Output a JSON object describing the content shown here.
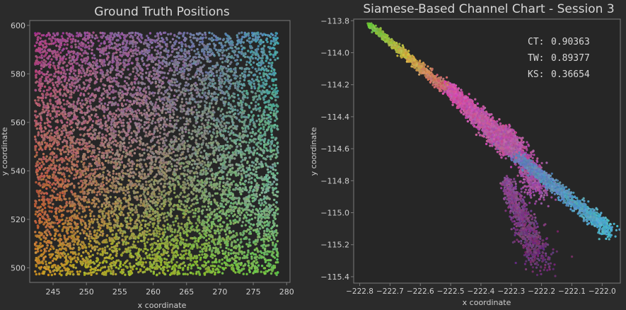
{
  "theme": {
    "figure_bg": "#2b2b2b",
    "axes_bg": "#262626",
    "spine": "#7a7a7a",
    "text": "#cfcfcf",
    "title": "#d6d6d6"
  },
  "chart_data": [
    {
      "type": "scatter",
      "title": "Ground Truth Positions",
      "xlabel": "x coordinate",
      "ylabel": "y coordinate",
      "xlim": [
        241.5,
        280.5
      ],
      "ylim": [
        494,
        602
      ],
      "xticks": [
        245,
        250,
        255,
        260,
        265,
        270,
        275,
        280
      ],
      "yticks": [
        500,
        520,
        540,
        560,
        580,
        600
      ],
      "grid": false,
      "coloring": "color encodes true position: magenta top-left, blue-violet top-right, red-orange lower-left, yellow bottom-left, green bottom-right, light grey/cyan lower-right",
      "corner_colors": {
        "top_left": "#a63a8a",
        "top_right": "#4a98b0",
        "bottom_left": "#c8a020",
        "bottom_right": "#60c040",
        "center": "#a86498",
        "left_middle": "#b0443a",
        "right_middle": "#9aa6b4"
      },
      "series": [
        {
          "x_range": [
            242.3,
            278.7
          ],
          "y_range": [
            497,
            597
          ],
          "approx_point_count": 9000
        }
      ]
    },
    {
      "type": "scatter",
      "title": "Siamese-Based Channel Chart - Session 3",
      "xlabel": "x coordinate",
      "ylabel": "y coordinate",
      "xlim": [
        -222.82,
        -221.94
      ],
      "ylim": [
        -115.44,
        -113.79
      ],
      "xticks": [
        -222.8,
        -222.7,
        -222.6,
        -222.5,
        -222.4,
        -222.3,
        -222.2,
        -222.1,
        -222.0
      ],
      "xtick_labels": [
        "−222.8",
        "−222.7",
        "−222.6",
        "−222.5",
        "−222.4",
        "−222.3",
        "−222.2",
        "−222.1",
        "−222.0"
      ],
      "yticks": [
        -113.8,
        -114.0,
        -114.2,
        -114.4,
        -114.6,
        -114.8,
        -115.0,
        -115.2,
        -115.4
      ],
      "ytick_labels": [
        "−113.8",
        "−114.0",
        "−114.2",
        "−114.4",
        "−114.6",
        "−114.8",
        "−115.0",
        "−115.2",
        "−115.4"
      ],
      "grid": false,
      "annotations": [
        {
          "label": "CT:",
          "value": "0.90363"
        },
        {
          "label": "TW:",
          "value": "0.89377"
        },
        {
          "label": "KS:",
          "value": "0.36654"
        }
      ],
      "annotation_placement": "top-right",
      "structure": [
        {
          "part": "upper-left arm",
          "from": [
            -222.77,
            -113.82
          ],
          "to": [
            -222.52,
            -114.22
          ],
          "colors": [
            "#6ac040",
            "#c8b040",
            "#c86070"
          ]
        },
        {
          "part": "central pink body",
          "from": [
            -222.52,
            -114.2
          ],
          "to": [
            -222.3,
            -114.6
          ],
          "colors": [
            "#d050a8",
            "#b05aa0"
          ]
        },
        {
          "part": "upper branch",
          "from": [
            -222.32,
            -114.48
          ],
          "to": [
            -222.2,
            -114.85
          ],
          "colors": [
            "#c050a0",
            "#9a50a0"
          ]
        },
        {
          "part": "lower tail",
          "from": [
            -222.32,
            -114.8
          ],
          "to": [
            -222.2,
            -115.3
          ],
          "colors": [
            "#8a4a90",
            "#6a3070"
          ]
        },
        {
          "part": "right arm",
          "from": [
            -222.38,
            -114.5
          ],
          "to": [
            -221.97,
            -115.12
          ],
          "colors": [
            "#7a6ab0",
            "#5a8ab8",
            "#4ab0c8"
          ]
        }
      ]
    }
  ]
}
